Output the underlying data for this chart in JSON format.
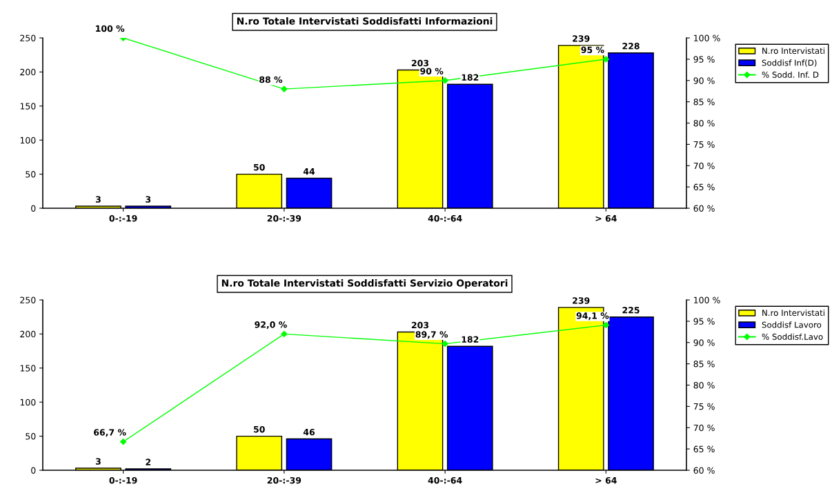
{
  "chart_data": [
    {
      "type": "bar",
      "title": "N.ro Totale Intervistati Soddisfatti Informazioni",
      "categories": [
        "0-:-19",
        "20-:-39",
        "40-:-64",
        "> 64"
      ],
      "series": [
        {
          "name": "N.ro Intervistati",
          "color": "#ffff00",
          "values": [
            3,
            50,
            203,
            239
          ]
        },
        {
          "name": "Soddisf Inf(D)",
          "color": "#0000ff",
          "values": [
            3,
            44,
            182,
            228
          ]
        },
        {
          "name": "% Sodd. Inf. D",
          "type": "line",
          "axis": "y2",
          "color": "#00ff00",
          "marker": "diamond",
          "values": [
            100,
            88,
            90,
            95
          ],
          "value_labels": [
            "100 %",
            "88 %",
            "90 %",
            "95 %"
          ]
        }
      ],
      "ylim": [
        0,
        250
      ],
      "yticks": [
        0,
        50,
        100,
        150,
        200,
        250
      ],
      "y2lim": [
        60,
        100
      ],
      "y2ticks": [
        {
          "value": 60,
          "label": "60 %"
        },
        {
          "value": 65,
          "label": "65 %"
        },
        {
          "value": 70,
          "label": "70 %"
        },
        {
          "value": 75,
          "label": "75 %"
        },
        {
          "value": 80,
          "label": "80 %"
        },
        {
          "value": 85,
          "label": "85 %"
        },
        {
          "value": 90,
          "label": "90 %"
        },
        {
          "value": 95,
          "label": "95 %"
        },
        {
          "value": 100,
          "label": "100 %"
        }
      ],
      "data_labels": true,
      "grid": false,
      "legend": "right"
    },
    {
      "type": "bar",
      "title": "N.ro Totale Intervistati Soddisfatti Servizio Operatori",
      "categories": [
        "0-:-19",
        "20-:-39",
        "40-:-64",
        "> 64"
      ],
      "series": [
        {
          "name": "N.ro Intervistati",
          "color": "#ffff00",
          "values": [
            3,
            50,
            203,
            239
          ]
        },
        {
          "name": "Soddisf Lavoro",
          "color": "#0000ff",
          "values": [
            2,
            46,
            182,
            225
          ]
        },
        {
          "name": "% Soddisf.Lavo",
          "type": "line",
          "axis": "y2",
          "color": "#00ff00",
          "marker": "diamond",
          "values": [
            66.7,
            92.0,
            89.7,
            94.1
          ],
          "value_labels": [
            "66,7 %",
            "92,0 %",
            "89,7 %",
            "94,1 %"
          ]
        }
      ],
      "ylim": [
        0,
        250
      ],
      "yticks": [
        0,
        50,
        100,
        150,
        200,
        250
      ],
      "y2lim": [
        60,
        100
      ],
      "y2ticks": [
        {
          "value": 60,
          "label": "60 %"
        },
        {
          "value": 65,
          "label": "65 %"
        },
        {
          "value": 70,
          "label": "70 %"
        },
        {
          "value": 75,
          "label": "75 %"
        },
        {
          "value": 80,
          "label": "80 %"
        },
        {
          "value": 85,
          "label": "85 %"
        },
        {
          "value": 90,
          "label": "90 %"
        },
        {
          "value": 95,
          "label": "95 %"
        },
        {
          "value": 100,
          "label": "100 %"
        }
      ],
      "data_labels": true,
      "grid": false,
      "legend": "right"
    }
  ]
}
